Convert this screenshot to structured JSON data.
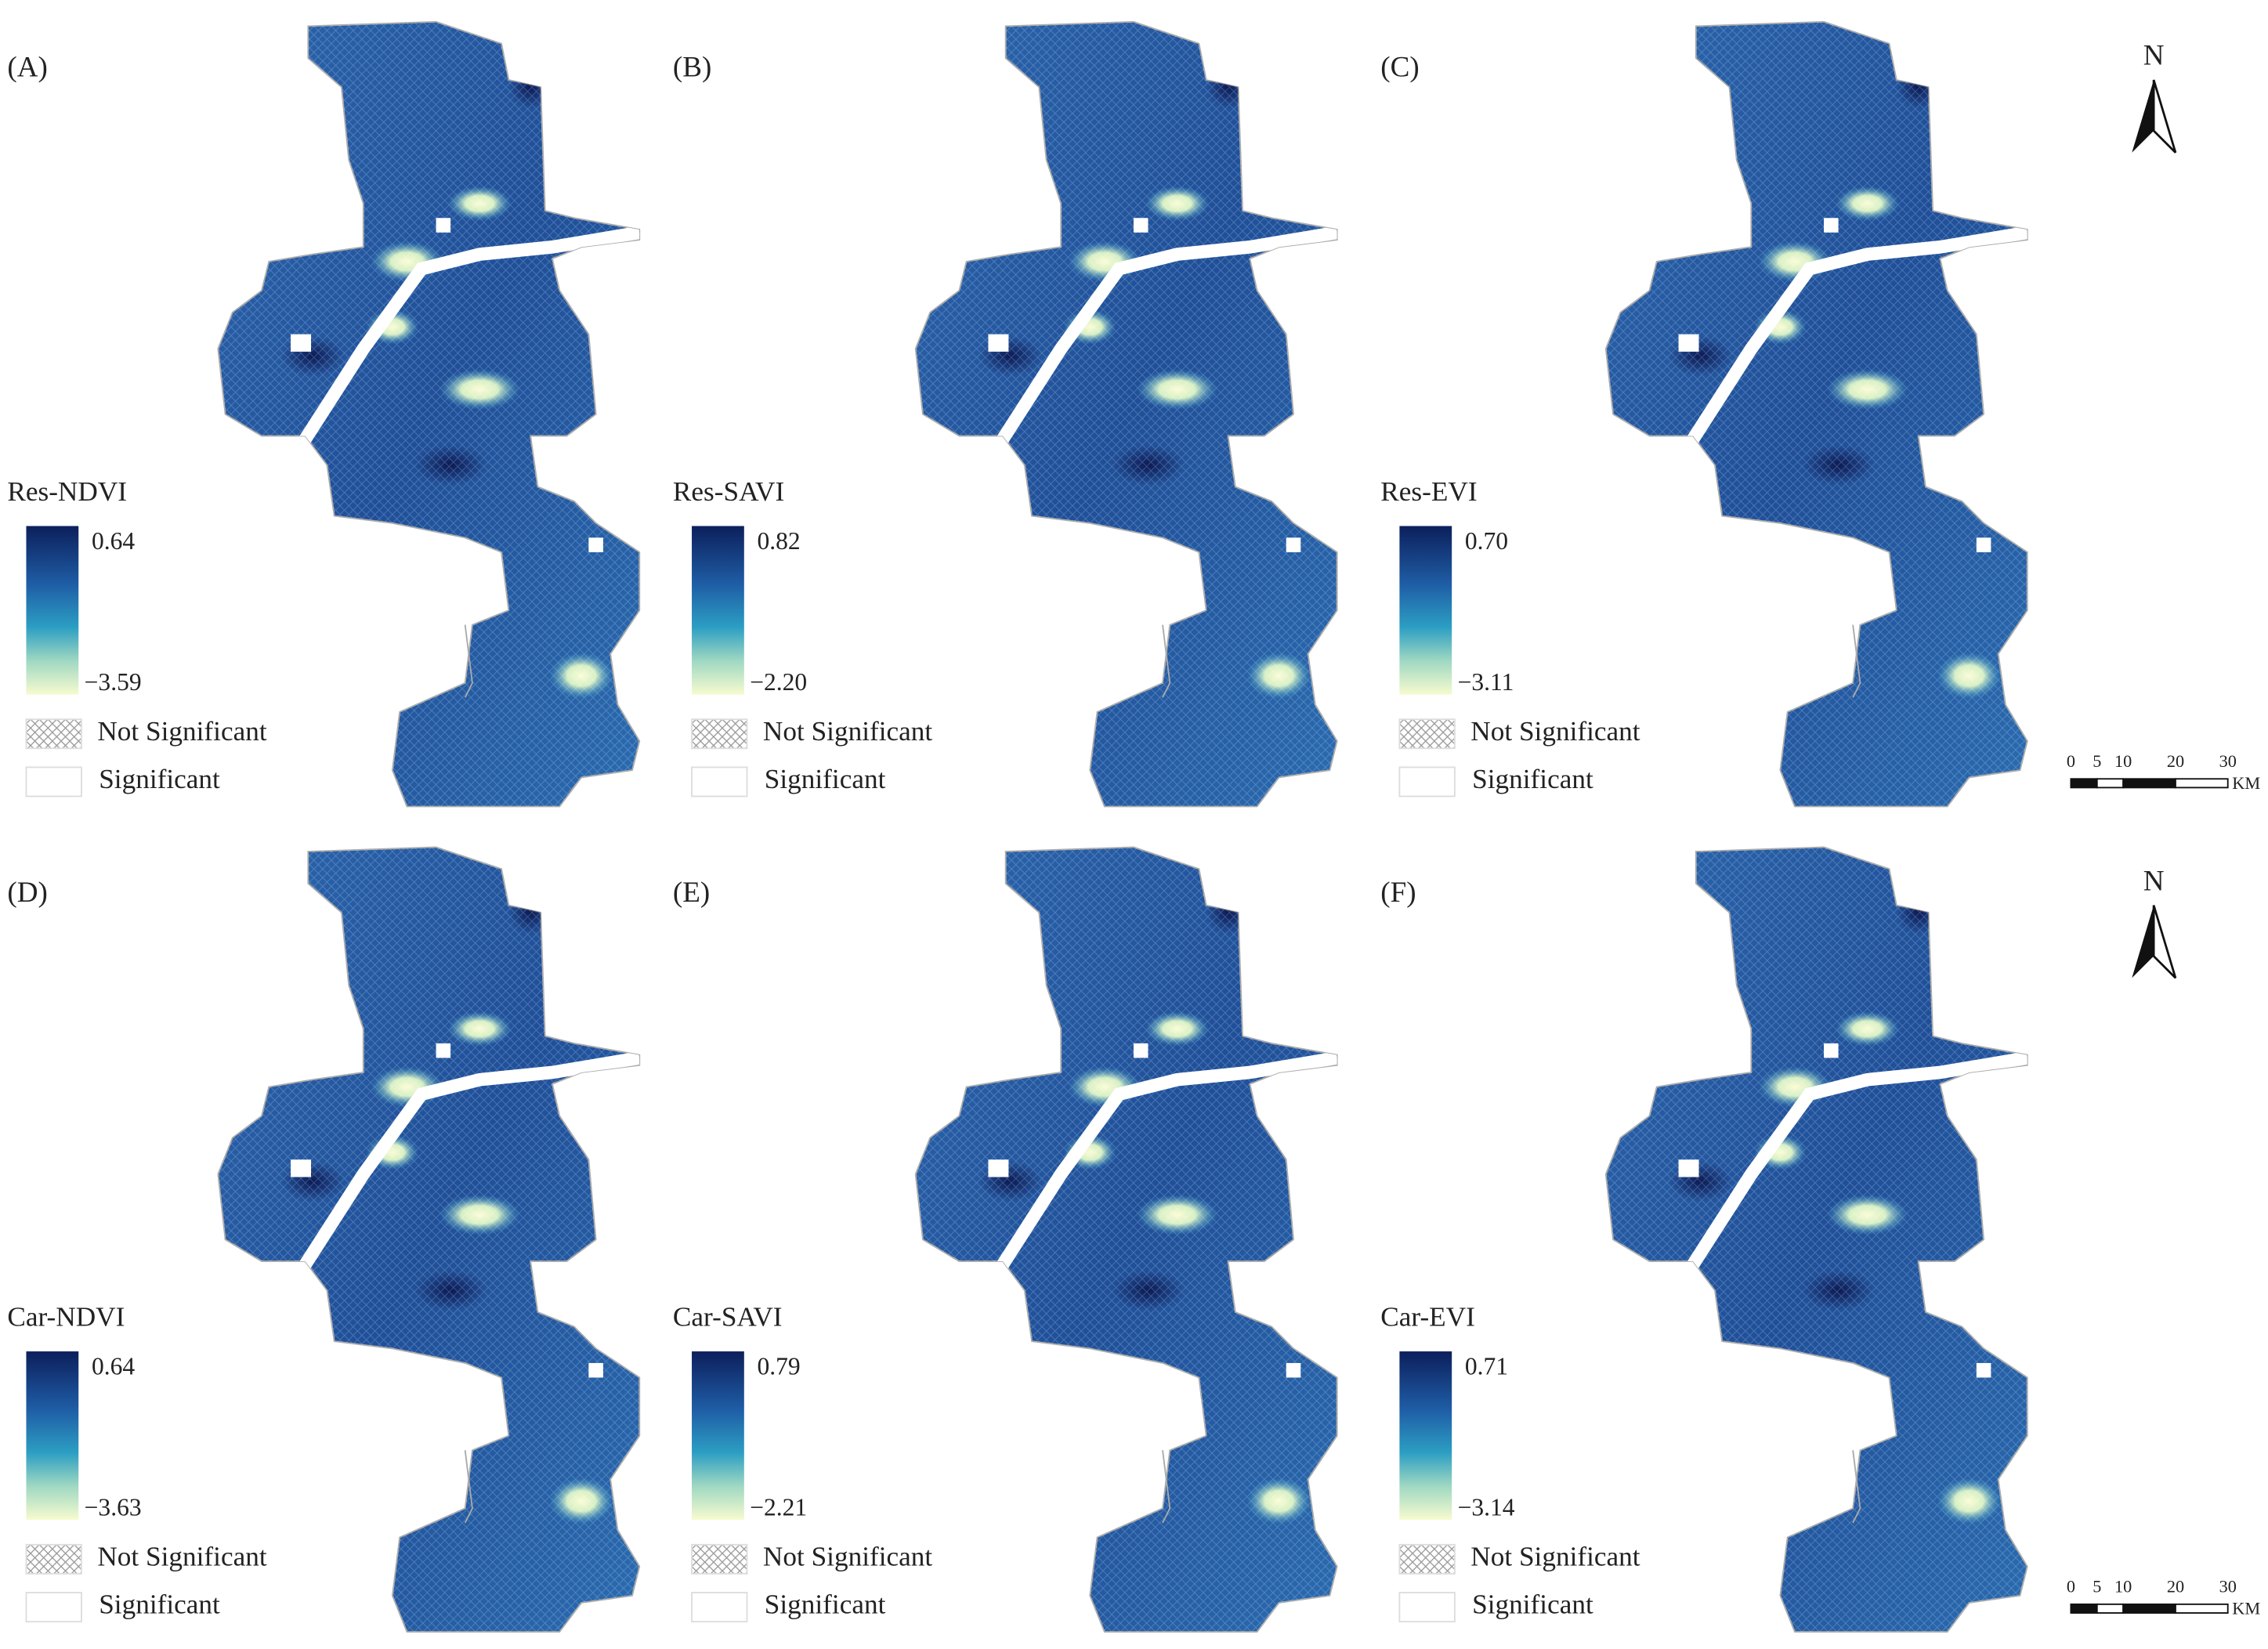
{
  "panels": [
    {
      "label": "(A)",
      "legend_title": "Res-NDVI",
      "max": "0.64",
      "min": "−3.59",
      "not_significant": "Not Significant",
      "significant": "Significant"
    },
    {
      "label": "(B)",
      "legend_title": "Res-SAVI",
      "max": "0.82",
      "min": "−2.20",
      "not_significant": "Not Significant",
      "significant": "Significant"
    },
    {
      "label": "(C)",
      "legend_title": "Res-EVI",
      "max": "0.70",
      "min": "−3.11",
      "not_significant": "Not Significant",
      "significant": "Significant"
    },
    {
      "label": "(D)",
      "legend_title": "Car-NDVI",
      "max": "0.64",
      "min": "−3.63",
      "not_significant": "Not Significant",
      "significant": "Significant"
    },
    {
      "label": "(E)",
      "legend_title": "Car-SAVI",
      "max": "0.79",
      "min": "−2.21",
      "not_significant": "Not Significant",
      "significant": "Significant"
    },
    {
      "label": "(F)",
      "legend_title": "Car-EVI",
      "max": "0.71",
      "min": "−3.14",
      "not_significant": "Not Significant",
      "significant": "Significant"
    }
  ],
  "north_arrows": [
    {
      "label": "N"
    },
    {
      "label": "N"
    }
  ],
  "scale_bars": [
    {
      "ticks": [
        "0",
        "5",
        "10",
        "20",
        "30"
      ],
      "unit": "KM"
    },
    {
      "ticks": [
        "0",
        "5",
        "10",
        "20",
        "30"
      ],
      "unit": "KM"
    }
  ]
}
